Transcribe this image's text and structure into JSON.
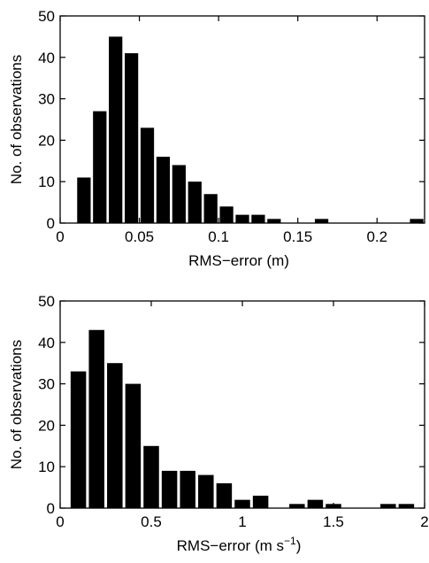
{
  "chart_data": [
    {
      "type": "bar",
      "title": "",
      "xlabel": "RMS−error (m)",
      "ylabel": "No. of observations",
      "xlim": [
        0,
        0.23
      ],
      "ylim": [
        0,
        50
      ],
      "bin_width": 0.01,
      "x": [
        0.015,
        0.025,
        0.035,
        0.045,
        0.055,
        0.065,
        0.075,
        0.085,
        0.095,
        0.105,
        0.115,
        0.125,
        0.135,
        0.145,
        0.155,
        0.165,
        0.175,
        0.185,
        0.195,
        0.205,
        0.215,
        0.225
      ],
      "values": [
        11,
        27,
        45,
        41,
        23,
        16,
        14,
        10,
        7,
        4,
        2,
        2,
        1,
        0,
        0,
        1,
        0,
        0,
        0,
        0,
        0,
        1
      ],
      "xticks": [
        0,
        0.05,
        0.1,
        0.15,
        0.2
      ],
      "xtick_labels": [
        "0",
        "0.05",
        "0.1",
        "0.15",
        "0.2"
      ],
      "yticks": [
        0,
        10,
        20,
        30,
        40,
        50
      ],
      "ytick_labels": [
        "0",
        "10",
        "20",
        "30",
        "40",
        "50"
      ],
      "bar_color": "#000000",
      "grid": false
    },
    {
      "type": "bar",
      "title": "",
      "xlabel": "RMS−error (m s",
      "xlabel_superscript": "−1",
      "xlabel_suffix": ")",
      "ylabel": "No. of observations",
      "xlim": [
        0,
        2
      ],
      "ylim": [
        0,
        50
      ],
      "bin_width": 0.1,
      "x": [
        0.1,
        0.2,
        0.3,
        0.4,
        0.5,
        0.6,
        0.7,
        0.8,
        0.9,
        1.0,
        1.1,
        1.2,
        1.3,
        1.4,
        1.5,
        1.6,
        1.7,
        1.8,
        1.9
      ],
      "values": [
        33,
        43,
        35,
        30,
        15,
        9,
        9,
        8,
        6,
        2,
        3,
        0,
        1,
        2,
        1,
        0,
        0,
        1,
        1
      ],
      "xticks": [
        0,
        0.5,
        1,
        1.5,
        2
      ],
      "xtick_labels": [
        "0",
        "0.5",
        "1",
        "1.5",
        "2"
      ],
      "yticks": [
        0,
        10,
        20,
        30,
        40,
        50
      ],
      "ytick_labels": [
        "0",
        "10",
        "20",
        "30",
        "40",
        "50"
      ],
      "bar_color": "#000000",
      "grid": false
    }
  ]
}
